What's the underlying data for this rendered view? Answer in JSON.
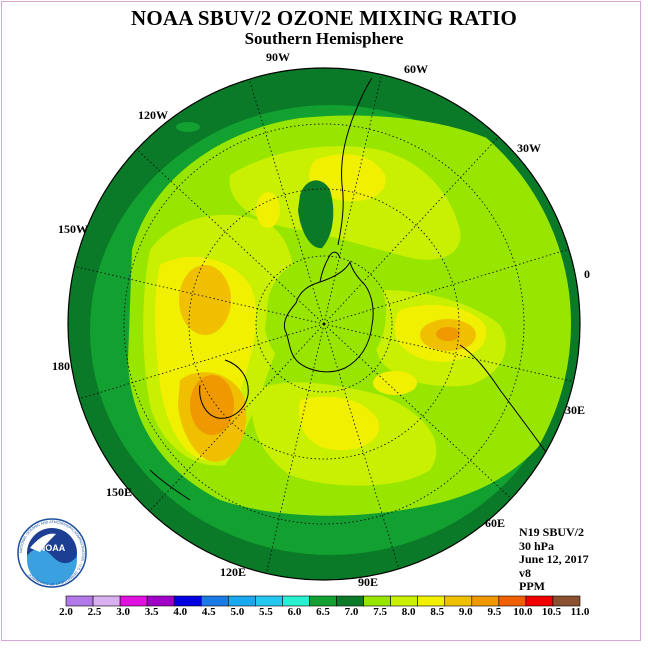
{
  "title": "NOAA SBUV/2 OZONE MIXING RATIO",
  "subtitle": "Southern Hemisphere",
  "logo_text": "NOAA",
  "logo_ring_text": "NATIONAL OCEANIC AND ATMOSPHERIC ADMINISTRATION · U.S. DEPARTMENT OF COMMERCE",
  "info": {
    "instrument": "N19 SBUV/2",
    "level": "30 hPa",
    "date": "June 12, 2017",
    "version": "v8",
    "units": "PPM"
  },
  "longitude_labels": [
    "90W",
    "60W",
    "30W",
    "0",
    "30E",
    "60E",
    "90E",
    "120E",
    "150E",
    "180",
    "150W",
    "120W"
  ],
  "colorbar": {
    "labels": [
      "2.0",
      "2.5",
      "3.0",
      "3.5",
      "4.0",
      "4.5",
      "5.0",
      "5.5",
      "6.0",
      "6.5",
      "7.0",
      "7.5",
      "8.0",
      "8.5",
      "9.0",
      "9.5",
      "10.0",
      "10.5",
      "11.0"
    ],
    "colors": [
      "#b27ae8",
      "#d9b0f0",
      "#e010e0",
      "#a000c8",
      "#0000e0",
      "#1a7ae6",
      "#1aa8f0",
      "#22c8f0",
      "#28f0d0",
      "#12a030",
      "#0a7a28",
      "#98e600",
      "#c8f000",
      "#f0f000",
      "#f0c000",
      "#f09800",
      "#f06000",
      "#f00000",
      "#8a5030"
    ]
  }
}
